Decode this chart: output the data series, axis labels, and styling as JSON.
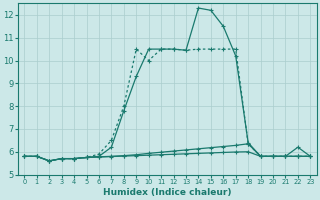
{
  "xlabel": "Humidex (Indice chaleur)",
  "x_values": [
    0,
    1,
    2,
    3,
    4,
    5,
    6,
    7,
    8,
    9,
    10,
    11,
    12,
    13,
    14,
    15,
    16,
    17,
    18,
    19,
    20,
    21,
    22,
    23
  ],
  "line1_solid": [
    5.8,
    5.8,
    5.6,
    5.7,
    5.7,
    5.75,
    5.8,
    6.2,
    7.8,
    9.3,
    10.5,
    10.5,
    10.5,
    10.45,
    12.3,
    12.2,
    11.5,
    10.2,
    6.4,
    5.8,
    5.8,
    5.8,
    6.2,
    5.8
  ],
  "line2_dotted": [
    5.8,
    5.8,
    5.6,
    5.7,
    5.7,
    5.75,
    5.9,
    6.5,
    8.0,
    10.5,
    10.0,
    10.5,
    10.5,
    10.45,
    10.5,
    10.5,
    10.5,
    10.5,
    6.35,
    5.8,
    5.8,
    5.8,
    5.8,
    5.8
  ],
  "line3_flat": [
    5.8,
    5.8,
    5.6,
    5.7,
    5.7,
    5.75,
    5.78,
    5.8,
    5.83,
    5.87,
    5.93,
    5.98,
    6.03,
    6.08,
    6.13,
    6.18,
    6.23,
    6.28,
    6.35,
    5.8,
    5.8,
    5.8,
    5.8,
    5.8
  ],
  "line4_flat": [
    5.8,
    5.8,
    5.6,
    5.7,
    5.7,
    5.75,
    5.77,
    5.79,
    5.81,
    5.83,
    5.85,
    5.87,
    5.89,
    5.91,
    5.93,
    5.95,
    5.97,
    5.99,
    6.0,
    5.8,
    5.8,
    5.8,
    5.8,
    5.8
  ],
  "line_color": "#1a7a6e",
  "bg_color": "#cce8e8",
  "grid_color": "#aacece",
  "ylim": [
    5.0,
    12.5
  ],
  "xlim": [
    -0.5,
    23.5
  ],
  "yticks": [
    5,
    6,
    7,
    8,
    9,
    10,
    11,
    12
  ],
  "xticks": [
    0,
    1,
    2,
    3,
    4,
    5,
    6,
    7,
    8,
    9,
    10,
    11,
    12,
    13,
    14,
    15,
    16,
    17,
    18,
    19,
    20,
    21,
    22,
    23
  ],
  "markersize": 3,
  "linewidth": 0.9
}
